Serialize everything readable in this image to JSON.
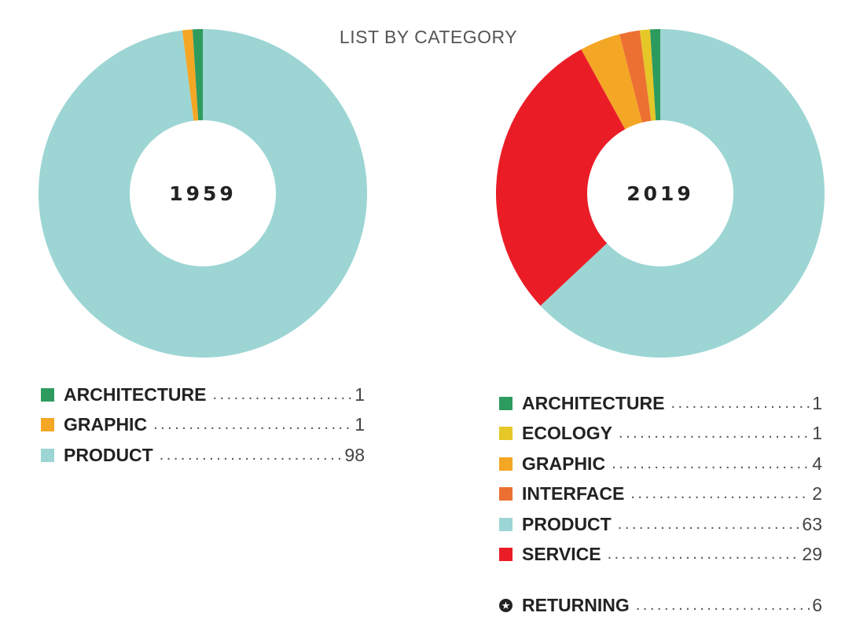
{
  "title": "LIST BY CATEGORY",
  "chart_data": [
    {
      "type": "pie",
      "donut": true,
      "center_label": "1959",
      "categories": [
        "ARCHITECTURE",
        "GRAPHIC",
        "PRODUCT"
      ],
      "values": [
        1,
        1,
        98
      ],
      "colors": [
        "#2e9b5e",
        "#f4a625",
        "#9cd5d4"
      ],
      "start": "top",
      "direction": "counterclockwise"
    },
    {
      "type": "pie",
      "donut": true,
      "center_label": "2019",
      "categories": [
        "ARCHITECTURE",
        "ECOLOGY",
        "GRAPHIC",
        "INTERFACE",
        "PRODUCT",
        "SERVICE"
      ],
      "values": [
        1,
        1,
        4,
        2,
        63,
        29
      ],
      "colors": [
        "#2e9b5e",
        "#e5c728",
        "#f4a625",
        "#ec7032",
        "#9cd5d4",
        "#ea1d27"
      ],
      "start": "top",
      "direction": "counterclockwise",
      "draw_order": [
        0,
        1,
        3,
        2,
        5,
        4
      ]
    }
  ],
  "legend_1959": [
    {
      "label": "ARCHITECTURE",
      "value": "1",
      "color": "#2e9b5e"
    },
    {
      "label": "GRAPHIC",
      "value": "1",
      "color": "#f4a625"
    },
    {
      "label": "PRODUCT",
      "value": "98",
      "color": "#9cd5d4"
    }
  ],
  "legend_2019": [
    {
      "label": "ARCHITECTURE",
      "value": "1",
      "color": "#2e9b5e"
    },
    {
      "label": "ECOLOGY",
      "value": "1",
      "color": "#e5c728"
    },
    {
      "label": "GRAPHIC",
      "value": "4",
      "color": "#f4a625"
    },
    {
      "label": "INTERFACE",
      "value": "2",
      "color": "#ec7032"
    },
    {
      "label": "PRODUCT",
      "value": "63",
      "color": "#9cd5d4"
    },
    {
      "label": "SERVICE",
      "value": "29",
      "color": "#ea1d27"
    }
  ],
  "returning": {
    "label": "RETURNING",
    "value": "6",
    "icon": "star-icon"
  }
}
